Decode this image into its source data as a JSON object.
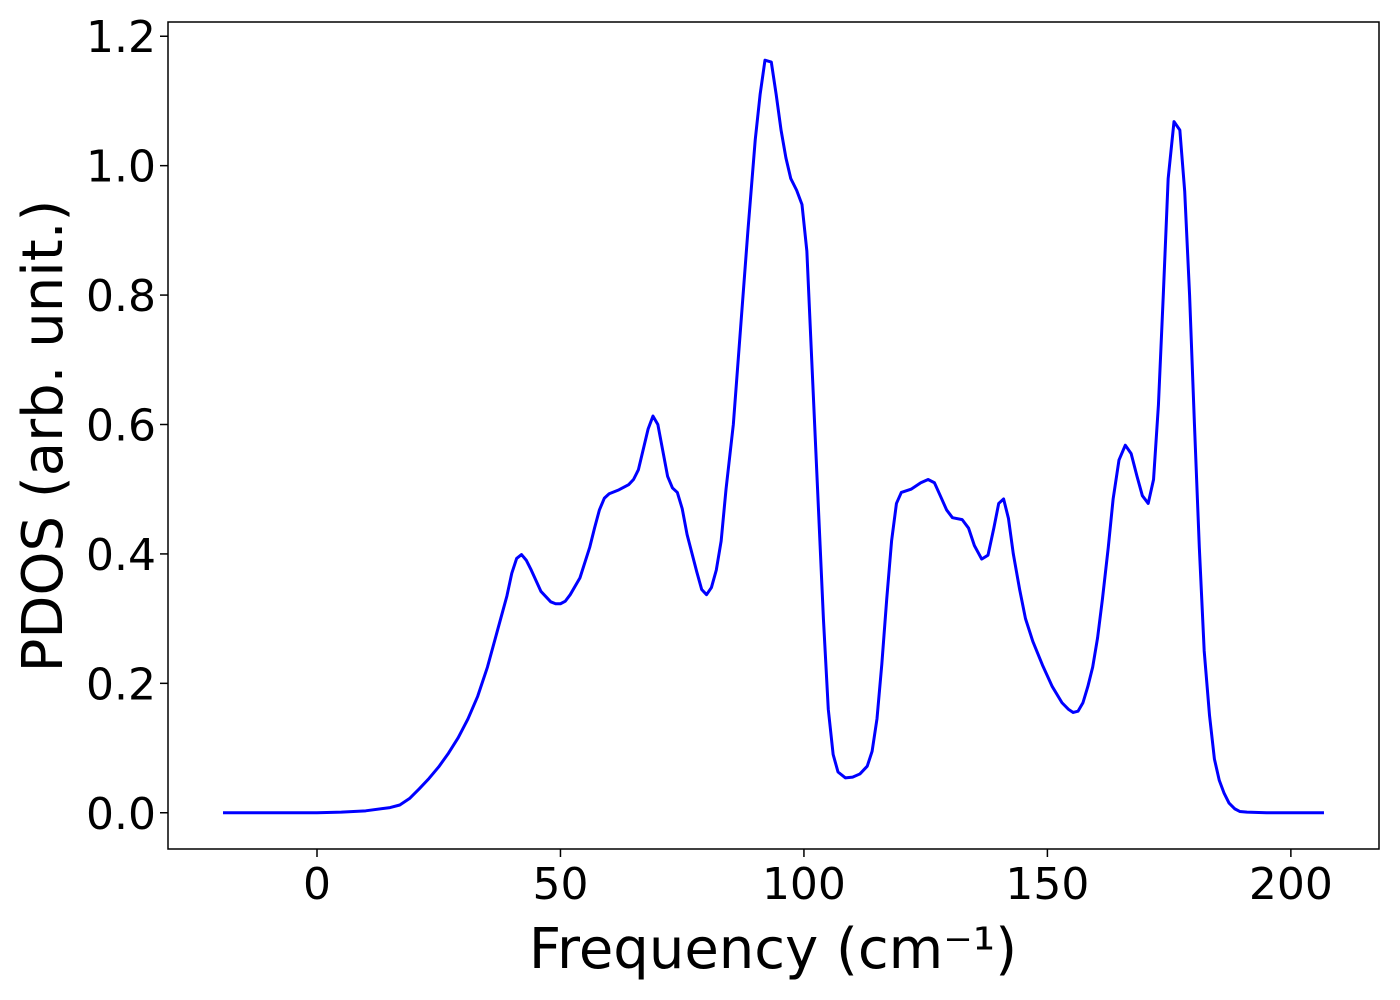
{
  "chart_data": {
    "type": "line",
    "xlabel": "Frequency (cm⁻¹)",
    "ylabel": "PDOS (arb. unit.)",
    "xlim": [
      -30.6,
      218.1
    ],
    "ylim": [
      -0.056,
      1.222
    ],
    "xticks": [
      0,
      50,
      100,
      150,
      200
    ],
    "yticks": [
      {
        "value": 0,
        "label": "0.0"
      },
      {
        "value": 0.2,
        "label": "0.2"
      },
      {
        "value": 0.4,
        "label": "0.4"
      },
      {
        "value": 0.6,
        "label": "0.6"
      },
      {
        "value": 0.8,
        "label": "0.8"
      },
      {
        "value": 1.0,
        "label": "1.0"
      },
      {
        "value": 1.2,
        "label": "1.2"
      }
    ],
    "grid": false,
    "x": [
      -19.3,
      0,
      5,
      10,
      15,
      17,
      19,
      21,
      23,
      25,
      27,
      29,
      31,
      33,
      35,
      37,
      39,
      40,
      41,
      42,
      43,
      44,
      46,
      48,
      49,
      50,
      51,
      52,
      54,
      56,
      57,
      58,
      59,
      60,
      62,
      64,
      65,
      66,
      68,
      69,
      70,
      71,
      72,
      73,
      74,
      75,
      76,
      78,
      79,
      80,
      81,
      82,
      83,
      84,
      85.5,
      87,
      88.5,
      90,
      91,
      92,
      93.3,
      94.3,
      95.3,
      96.3,
      97.3,
      98.5,
      99.6,
      100.6,
      101.6,
      102.8,
      104,
      105,
      106,
      107,
      108.5,
      110,
      111.5,
      113,
      114,
      115,
      116,
      117,
      118,
      119,
      120,
      122,
      124,
      125.5,
      126.8,
      128,
      129.3,
      130.5,
      132.5,
      133.8,
      135,
      136.5,
      137.8,
      139,
      140,
      141,
      142,
      143,
      144.3,
      145.5,
      147,
      149,
      151,
      153,
      154.3,
      155.3,
      156.3,
      157.3,
      158.3,
      159.3,
      160.3,
      161.3,
      162.5,
      163.5,
      164.7,
      166,
      167.2,
      168.4,
      169.5,
      170.7,
      171.8,
      172.8,
      173.8,
      174.8,
      176,
      177.2,
      178.2,
      179.2,
      180.2,
      181.2,
      182.2,
      183.3,
      184.3,
      185.3,
      186.3,
      187.3,
      188.5,
      189.5,
      191,
      195,
      206.8
    ],
    "series": [
      {
        "name": "PDOS",
        "color": "#0000ff",
        "values": [
          0,
          0,
          0.001,
          0.003,
          0.008,
          0.012,
          0.022,
          0.037,
          0.053,
          0.071,
          0.092,
          0.116,
          0.145,
          0.18,
          0.225,
          0.28,
          0.335,
          0.37,
          0.393,
          0.399,
          0.39,
          0.375,
          0.342,
          0.326,
          0.323,
          0.323,
          0.327,
          0.337,
          0.363,
          0.41,
          0.44,
          0.468,
          0.486,
          0.493,
          0.499,
          0.507,
          0.515,
          0.53,
          0.593,
          0.613,
          0.6,
          0.56,
          0.52,
          0.502,
          0.495,
          0.47,
          0.43,
          0.372,
          0.345,
          0.337,
          0.348,
          0.375,
          0.42,
          0.5,
          0.6,
          0.75,
          0.9,
          1.04,
          1.11,
          1.163,
          1.16,
          1.11,
          1.055,
          1.012,
          0.98,
          0.962,
          0.94,
          0.868,
          0.7,
          0.5,
          0.3,
          0.16,
          0.09,
          0.063,
          0.054,
          0.055,
          0.06,
          0.072,
          0.095,
          0.145,
          0.23,
          0.33,
          0.42,
          0.478,
          0.495,
          0.5,
          0.51,
          0.515,
          0.51,
          0.49,
          0.468,
          0.456,
          0.453,
          0.44,
          0.413,
          0.392,
          0.398,
          0.44,
          0.478,
          0.485,
          0.455,
          0.4,
          0.345,
          0.3,
          0.265,
          0.228,
          0.195,
          0.17,
          0.16,
          0.155,
          0.157,
          0.17,
          0.195,
          0.225,
          0.27,
          0.33,
          0.41,
          0.485,
          0.545,
          0.568,
          0.555,
          0.52,
          0.49,
          0.478,
          0.515,
          0.63,
          0.8,
          0.98,
          1.068,
          1.055,
          0.96,
          0.8,
          0.6,
          0.41,
          0.25,
          0.15,
          0.083,
          0.05,
          0.03,
          0.015,
          0.006,
          0.002,
          0.001,
          0,
          0
        ]
      }
    ]
  }
}
